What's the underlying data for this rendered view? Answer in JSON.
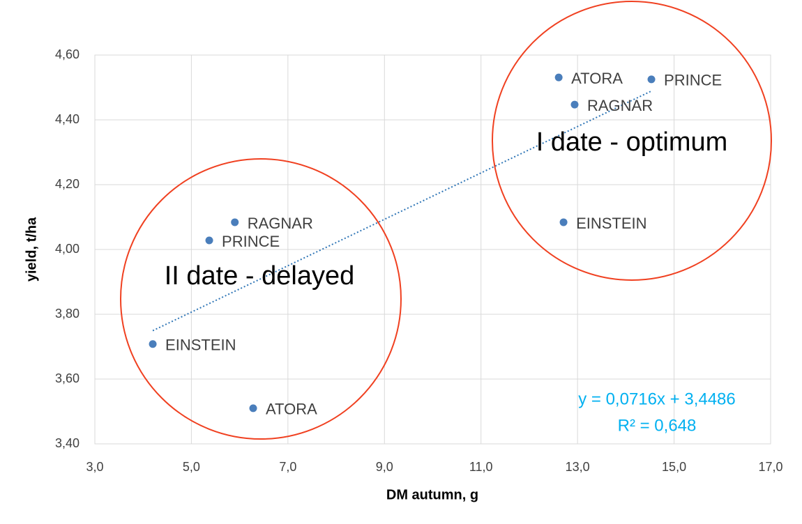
{
  "chart_data": {
    "type": "scatter",
    "x_label": "DM autumn, g",
    "y_label": "yield, t/ha",
    "xlim": [
      3,
      17
    ],
    "xticks": [
      {
        "value": 3,
        "label": "3,0"
      },
      {
        "value": 5,
        "label": "5,0"
      },
      {
        "value": 7,
        "label": "7,0"
      },
      {
        "value": 9,
        "label": "9,0"
      },
      {
        "value": 11,
        "label": "11,0"
      },
      {
        "value": 13,
        "label": "13,0"
      },
      {
        "value": 15,
        "label": "15,0"
      },
      {
        "value": 17,
        "label": "17,0"
      }
    ],
    "ylim": [
      3.4,
      4.6
    ],
    "yticks": [
      {
        "value": 3.4,
        "label": "3,40"
      },
      {
        "value": 3.6,
        "label": "3,60"
      },
      {
        "value": 3.8,
        "label": "3,80"
      },
      {
        "value": 4.0,
        "label": "4,00"
      },
      {
        "value": 4.2,
        "label": "4,20"
      },
      {
        "value": 4.4,
        "label": "4,40"
      },
      {
        "value": 4.6,
        "label": "4,60"
      }
    ],
    "grid": true,
    "series": [
      {
        "color": "#4a7ebb",
        "labels": [
          "ATORA",
          "PRINCE",
          "RAGNAR",
          "EINSTEIN",
          "RAGNAR",
          "PRINCE",
          "EINSTEIN",
          "ATORA"
        ],
        "x": [
          12.61,
          14.53,
          12.94,
          12.71,
          5.9,
          5.37,
          4.2,
          6.28
        ],
        "values": [
          4.531,
          4.525,
          4.447,
          4.084,
          4.084,
          4.028,
          3.708,
          3.51
        ]
      }
    ],
    "trendline": {
      "slope": 0.0716,
      "intercept": 3.4486,
      "color": "#2e75b6",
      "equation": "y = 0,0716x + 3,4486",
      "r2": "R² = 0,648"
    },
    "annotations": [
      "I date - optimum",
      "II date - delayed"
    ]
  }
}
